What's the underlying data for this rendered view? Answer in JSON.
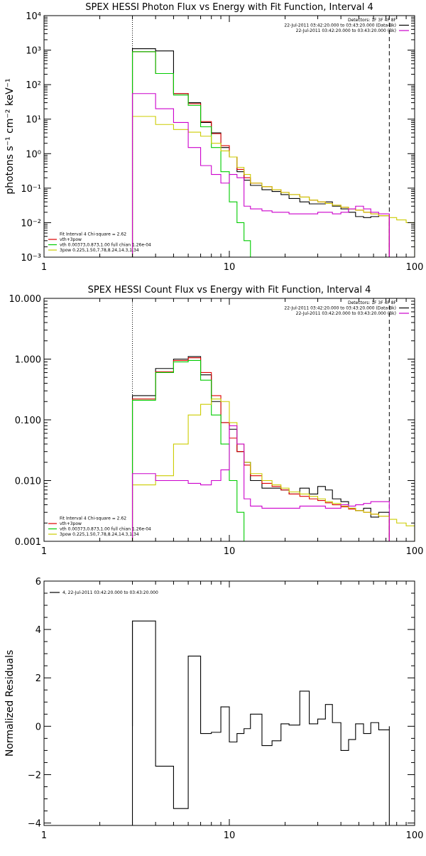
{
  "chart_data": [
    {
      "type": "line",
      "title": "SPEX HESSI Photon Flux vs Energy with Fit Function, Interval 4",
      "ylabel": "photons s⁻¹ cm⁻² keV⁻¹",
      "xlabel": "",
      "xscale": "log",
      "yscale": "log",
      "xlim": [
        1,
        100
      ],
      "ylim": [
        0.001,
        10000
      ],
      "x_ticks": [
        {
          "value": 1,
          "label": "1"
        },
        {
          "value": 10,
          "label": "10"
        },
        {
          "value": 100,
          "label": "100"
        }
      ],
      "y_ticks": [
        {
          "value": 0.001,
          "label": "10⁻³"
        },
        {
          "value": 0.01,
          "label": "10⁻²"
        },
        {
          "value": 0.1,
          "label": "10⁻¹"
        },
        {
          "value": 1,
          "label": "10⁰"
        },
        {
          "value": 10,
          "label": "10¹"
        },
        {
          "value": 100,
          "label": "10²"
        },
        {
          "value": 1000,
          "label": "10³"
        },
        {
          "value": 10000,
          "label": "10⁴"
        }
      ],
      "vlines": [
        {
          "x": 3.0,
          "style": "dotted",
          "color": "#000000"
        },
        {
          "x": 73.0,
          "style": "dashed",
          "color": "#000000"
        }
      ],
      "legend_top_right": [
        {
          "text": "Detectors: 1F 3F 4F 8F",
          "color": ""
        },
        {
          "text": "22-Jul-2011 03:42:20.000 to 03:43:20.000 (Data-Bk)",
          "color": "#000000"
        },
        {
          "text": "22-Jul-2011 03:42:20.000 to 03:43:20.000 (Bk)",
          "color": "#cc00cc"
        }
      ],
      "legend_bottom_left": [
        {
          "text": "Fit Interval  4    Chi-square = 2.62",
          "color": ""
        },
        {
          "text": "vth+3pow",
          "color": "#dd0000"
        },
        {
          "text": "vth 0.00373,0.873,1.00  full chian 1.26e-04",
          "color": "#00cc00"
        },
        {
          "text": "3pow 0.225,1.50,7.78,8.24,14.3,1.34",
          "color": "#cccc00"
        }
      ],
      "series": [
        {
          "color": "#000000",
          "edges": [
            3.0,
            4.0,
            5.0,
            6.0,
            7.0,
            8.0,
            9.0,
            10.0,
            11.0,
            12.0,
            13.0,
            15.0,
            17.0,
            19.0,
            21.0,
            24.0,
            27.0,
            30.0,
            33.0,
            36.0,
            40.0,
            44.0,
            48.0,
            53.0,
            58.0,
            64.0,
            73.0
          ],
          "values": [
            1100,
            950,
            55,
            30,
            8.0,
            4.0,
            1.5,
            0.8,
            0.3,
            0.17,
            0.12,
            0.09,
            0.08,
            0.065,
            0.05,
            0.04,
            0.035,
            0.035,
            0.04,
            0.03,
            0.025,
            0.02,
            0.015,
            0.014,
            0.015,
            0.016
          ]
        },
        {
          "color": "#dd0000",
          "edges": [
            3.0,
            4.0,
            5.0,
            6.0,
            7.0,
            8.0,
            9.0,
            10.0,
            11.0,
            12.0,
            13.0,
            15.0,
            17.0,
            19.0,
            21.0,
            24.0,
            27.0,
            30.0,
            33.0,
            36.0,
            40.0,
            44.0,
            48.0,
            53.0,
            58.0,
            64.0,
            73.0
          ],
          "values": [
            900,
            210,
            55,
            28,
            8.5,
            3.8,
            1.7,
            0.8,
            0.35,
            0.2,
            0.14,
            0.11,
            0.09,
            0.075,
            0.065,
            0.055,
            0.045,
            0.04,
            0.036,
            0.032,
            0.028,
            0.025,
            0.023,
            0.02,
            0.018,
            0.016
          ]
        },
        {
          "color": "#00cc00",
          "edges": [
            3.0,
            4.0,
            5.0,
            6.0,
            7.0,
            8.0,
            9.0,
            10.0,
            11.0,
            12.0,
            13.0
          ],
          "values": [
            900,
            210,
            50,
            25,
            6.0,
            1.5,
            0.3,
            0.04,
            0.01,
            0.003
          ]
        },
        {
          "color": "#cccc00",
          "edges": [
            3.0,
            4.0,
            5.0,
            6.0,
            7.0,
            8.0,
            9.0,
            10.0,
            11.0,
            12.0,
            13.0,
            15.0,
            17.0,
            19.0,
            21.0,
            24.0,
            27.0,
            30.0,
            33.0,
            36.0,
            40.0,
            44.0,
            48.0,
            53.0,
            58.0,
            64.0,
            73.0,
            80.0,
            90.0,
            100.0
          ],
          "values": [
            12,
            7,
            5,
            4.2,
            3.2,
            2.0,
            1.2,
            0.8,
            0.4,
            0.25,
            0.14,
            0.11,
            0.09,
            0.075,
            0.065,
            0.055,
            0.045,
            0.04,
            0.036,
            0.032,
            0.028,
            0.025,
            0.023,
            0.02,
            0.018,
            0.016,
            0.014,
            0.012,
            0.01
          ]
        },
        {
          "color": "#cc00cc",
          "edges": [
            3.0,
            4.0,
            5.0,
            6.0,
            7.0,
            8.0,
            9.0,
            10.0,
            11.0,
            12.0,
            13.0,
            15.0,
            17.0,
            19.0,
            21.0,
            24.0,
            27.0,
            30.0,
            33.0,
            36.0,
            40.0,
            44.0,
            48.0,
            53.0,
            58.0,
            64.0,
            73.0
          ],
          "values": [
            55,
            20,
            8,
            1.5,
            0.45,
            0.25,
            0.14,
            0.25,
            0.2,
            0.03,
            0.025,
            0.022,
            0.02,
            0.02,
            0.018,
            0.018,
            0.018,
            0.02,
            0.02,
            0.018,
            0.02,
            0.025,
            0.03,
            0.025,
            0.02,
            0.018
          ]
        }
      ]
    },
    {
      "type": "line",
      "title": "SPEX HESSI Count Flux vs Energy with Fit Function, Interval 4",
      "ylabel": "",
      "xlabel": "",
      "xscale": "log",
      "yscale": "log",
      "xlim": [
        1,
        100
      ],
      "ylim": [
        0.001,
        10
      ],
      "x_ticks": [
        {
          "value": 1,
          "label": "1"
        },
        {
          "value": 10,
          "label": "10"
        },
        {
          "value": 100,
          "label": "100"
        }
      ],
      "y_ticks": [
        {
          "value": 0.001,
          "label": "0.001"
        },
        {
          "value": 0.01,
          "label": "0.010"
        },
        {
          "value": 0.1,
          "label": "0.100"
        },
        {
          "value": 1,
          "label": "1.000"
        },
        {
          "value": 10,
          "label": "10.000"
        }
      ],
      "vlines": [
        {
          "x": 3.0,
          "style": "dotted",
          "color": "#000000"
        },
        {
          "x": 73.0,
          "style": "dashed",
          "color": "#000000"
        }
      ],
      "legend_top_right": [
        {
          "text": "Detectors: 1F 3F 4F 8F",
          "color": ""
        },
        {
          "text": "22-Jul-2011 03:42:20.000 to 03:43:20.000 (Data-Bk)",
          "color": "#000000"
        },
        {
          "text": "22-Jul-2011 03:42:20.000 to 03:43:20.000 (Bk)",
          "color": "#cc00cc"
        }
      ],
      "legend_bottom_left": [
        {
          "text": "Fit Interval  4    Chi-square = 2.62",
          "color": ""
        },
        {
          "text": "vth+3pow",
          "color": "#dd0000"
        },
        {
          "text": "vth 0.00373,0.873,1.00  full chian 1.26e-04",
          "color": "#00cc00"
        },
        {
          "text": "3pow 0.225,1.50,7.78,8.24,14.3,1.34",
          "color": "#cccc00"
        }
      ],
      "series": [
        {
          "color": "#000000",
          "edges": [
            3.0,
            4.0,
            5.0,
            6.0,
            7.0,
            8.0,
            9.0,
            10.0,
            11.0,
            12.0,
            13.0,
            15.0,
            17.0,
            19.0,
            21.0,
            24.0,
            27.0,
            30.0,
            33.0,
            36.0,
            40.0,
            44.0,
            48.0,
            53.0,
            58.0,
            64.0,
            73.0
          ],
          "values": [
            0.25,
            0.7,
            1.0,
            1.1,
            0.55,
            0.2,
            0.09,
            0.07,
            0.03,
            0.02,
            0.01,
            0.0075,
            0.0075,
            0.007,
            0.006,
            0.0075,
            0.006,
            0.008,
            0.007,
            0.005,
            0.0045,
            0.0035,
            0.0032,
            0.0035,
            0.0025,
            0.003
          ]
        },
        {
          "color": "#dd0000",
          "edges": [
            3.0,
            4.0,
            5.0,
            6.0,
            7.0,
            8.0,
            9.0,
            10.0,
            11.0,
            12.0,
            13.0,
            15.0,
            17.0,
            19.0,
            21.0,
            24.0,
            27.0,
            30.0,
            33.0,
            36.0,
            40.0,
            44.0,
            48.0,
            53.0,
            58.0,
            64.0,
            73.0
          ],
          "values": [
            0.22,
            0.62,
            0.95,
            1.05,
            0.6,
            0.25,
            0.09,
            0.05,
            0.03,
            0.018,
            0.012,
            0.009,
            0.008,
            0.007,
            0.006,
            0.0055,
            0.005,
            0.0047,
            0.0043,
            0.004,
            0.0037,
            0.0034,
            0.0032,
            0.003,
            0.0028,
            0.0026
          ]
        },
        {
          "color": "#00cc00",
          "edges": [
            3.0,
            4.0,
            5.0,
            6.0,
            7.0,
            8.0,
            9.0,
            10.0,
            11.0,
            12.0
          ],
          "values": [
            0.21,
            0.6,
            0.9,
            0.95,
            0.45,
            0.12,
            0.04,
            0.01,
            0.003
          ]
        },
        {
          "color": "#cccc00",
          "edges": [
            3.0,
            4.0,
            5.0,
            6.0,
            7.0,
            8.0,
            9.0,
            10.0,
            11.0,
            12.0,
            13.0,
            15.0,
            17.0,
            19.0,
            21.0,
            24.0,
            27.0,
            30.0,
            33.0,
            36.0,
            40.0,
            44.0,
            48.0,
            53.0,
            58.0,
            64.0,
            73.0,
            80.0,
            90.0,
            100.0
          ],
          "values": [
            0.0085,
            0.012,
            0.04,
            0.12,
            0.18,
            0.22,
            0.2,
            0.09,
            0.04,
            0.02,
            0.013,
            0.01,
            0.0085,
            0.0075,
            0.0065,
            0.006,
            0.0055,
            0.005,
            0.0045,
            0.0042,
            0.0038,
            0.0035,
            0.0032,
            0.003,
            0.0028,
            0.0026,
            0.0023,
            0.002,
            0.0018
          ]
        },
        {
          "color": "#cc00cc",
          "edges": [
            3.0,
            4.0,
            5.0,
            6.0,
            7.0,
            8.0,
            9.0,
            10.0,
            11.0,
            12.0,
            13.0,
            15.0,
            17.0,
            19.0,
            21.0,
            24.0,
            27.0,
            30.0,
            33.0,
            36.0,
            40.0,
            44.0,
            48.0,
            53.0,
            58.0,
            64.0,
            73.0
          ],
          "values": [
            0.013,
            0.01,
            0.01,
            0.009,
            0.0085,
            0.01,
            0.015,
            0.08,
            0.04,
            0.005,
            0.0038,
            0.0035,
            0.0035,
            0.0035,
            0.0035,
            0.0038,
            0.0038,
            0.0038,
            0.0035,
            0.0035,
            0.004,
            0.0038,
            0.004,
            0.0042,
            0.0045,
            0.0045
          ]
        }
      ]
    },
    {
      "type": "line",
      "title": "",
      "ylabel": "Normalized Residuals",
      "xlabel": "",
      "xscale": "log",
      "yscale": "linear",
      "xlim": [
        1,
        100
      ],
      "ylim": [
        -4.1,
        6.0
      ],
      "x_ticks": [
        {
          "value": 1,
          "label": "1"
        },
        {
          "value": 10,
          "label": "10"
        },
        {
          "value": 100,
          "label": "100"
        }
      ],
      "y_ticks": [
        {
          "value": -4,
          "label": "−4"
        },
        {
          "value": -2,
          "label": "−2"
        },
        {
          "value": 0,
          "label": "0"
        },
        {
          "value": 2,
          "label": "2"
        },
        {
          "value": 4,
          "label": "4"
        },
        {
          "value": 6,
          "label": "6"
        }
      ],
      "vlines": [],
      "legend_top_right": [],
      "legend_bottom_left": [],
      "legend_top_left": [
        {
          "text": "4, 22-Jul-2011 03:42:20.000 to 03:43:20.000",
          "color": "#000000"
        }
      ],
      "series": [
        {
          "color": "#000000",
          "closed": true,
          "edges": [
            3.0,
            4.0,
            5.0,
            6.0,
            7.0,
            8.0,
            9.0,
            10.0,
            11.0,
            12.0,
            13.0,
            15.0,
            17.0,
            19.0,
            21.0,
            24.0,
            27.0,
            30.0,
            33.0,
            36.0,
            40.0,
            44.0,
            48.0,
            53.0,
            58.0,
            64.0,
            73.0
          ],
          "values": [
            4.35,
            -1.65,
            -3.4,
            2.9,
            -0.3,
            -0.25,
            0.8,
            -0.65,
            -0.3,
            -0.1,
            0.5,
            -0.8,
            -0.6,
            0.1,
            0.05,
            1.45,
            0.1,
            0.3,
            0.9,
            0.15,
            -1.0,
            -0.55,
            0.1,
            -0.3,
            0.15,
            -0.15
          ]
        }
      ]
    }
  ]
}
